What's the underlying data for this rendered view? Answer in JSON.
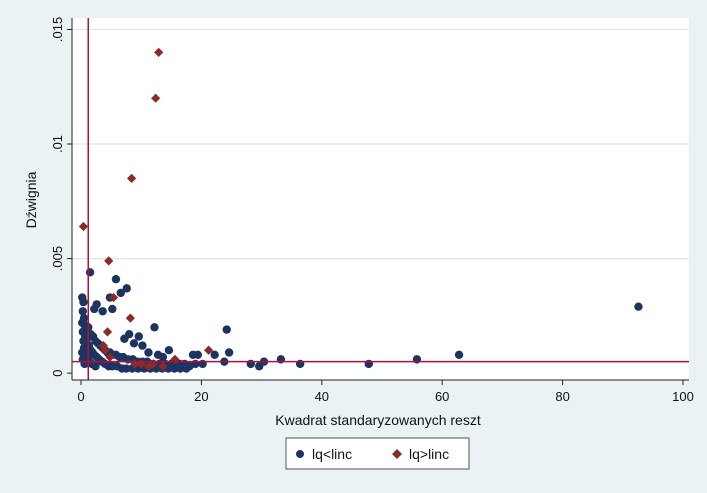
{
  "chart_data": {
    "type": "scatter",
    "title": "",
    "xlabel": "Kwadrat standaryzowanych reszt",
    "ylabel": "Dźwignia",
    "xlim": [
      -1.5,
      101
    ],
    "ylim": [
      -0.0003,
      0.0155
    ],
    "xticks": [
      0,
      20,
      40,
      60,
      80,
      100
    ],
    "xtick_labels": [
      "0",
      "20",
      "40",
      "60",
      "80",
      "100"
    ],
    "yticks": [
      0,
      0.005,
      0.01,
      0.015
    ],
    "ytick_labels": [
      "0",
      ".005",
      ".01",
      ".015"
    ],
    "grid": "horizontal",
    "legend": "bottom-center",
    "ref_lines": {
      "x": 1.2,
      "y": 0.0005,
      "color": "#b0103a"
    },
    "series": [
      {
        "name": "lq<linc",
        "color": "#1d3461",
        "marker": "circle",
        "points": [
          [
            0.2,
            0.0033
          ],
          [
            0.4,
            0.0031
          ],
          [
            0.3,
            0.0027
          ],
          [
            0.5,
            0.0024
          ],
          [
            0.2,
            0.0022
          ],
          [
            0.6,
            0.0021
          ],
          [
            0.8,
            0.0019
          ],
          [
            0.3,
            0.0018
          ],
          [
            0.7,
            0.0016
          ],
          [
            1.0,
            0.0015
          ],
          [
            0.4,
            0.0014
          ],
          [
            0.9,
            0.0013
          ],
          [
            1.3,
            0.0012
          ],
          [
            0.5,
            0.0011
          ],
          [
            1.6,
            0.001
          ],
          [
            0.2,
            0.0009
          ],
          [
            1.9,
            0.0009
          ],
          [
            0.8,
            0.0008
          ],
          [
            2.2,
            0.0008
          ],
          [
            1.1,
            0.0007
          ],
          [
            2.6,
            0.0007
          ],
          [
            0.3,
            0.0006
          ],
          [
            3.0,
            0.0006
          ],
          [
            1.4,
            0.0005
          ],
          [
            3.5,
            0.0005
          ],
          [
            0.6,
            0.0004
          ],
          [
            4.0,
            0.0004
          ],
          [
            1.8,
            0.0004
          ],
          [
            4.6,
            0.0003
          ],
          [
            2.4,
            0.0003
          ],
          [
            5.2,
            0.0003
          ],
          [
            6.0,
            0.0003
          ],
          [
            6.8,
            0.0002
          ],
          [
            7.5,
            0.0002
          ],
          [
            8.5,
            0.0002
          ],
          [
            9.5,
            0.0002
          ],
          [
            10.5,
            0.0002
          ],
          [
            11.5,
            0.0002
          ],
          [
            12.5,
            0.0002
          ],
          [
            13.5,
            0.0002
          ],
          [
            14.5,
            0.0002
          ],
          [
            15.5,
            0.0002
          ],
          [
            16.5,
            0.0002
          ],
          [
            17.5,
            0.0002
          ],
          [
            1.2,
            0.002
          ],
          [
            1.6,
            0.0017
          ],
          [
            2.0,
            0.0016
          ],
          [
            2.4,
            0.0014
          ],
          [
            2.8,
            0.0013
          ],
          [
            3.2,
            0.0012
          ],
          [
            3.6,
            0.0011
          ],
          [
            4.0,
            0.001
          ],
          [
            4.4,
            0.0009
          ],
          [
            4.8,
            0.0009
          ],
          [
            5.2,
            0.0008
          ],
          [
            5.8,
            0.0008
          ],
          [
            6.4,
            0.0007
          ],
          [
            7.0,
            0.0007
          ],
          [
            7.8,
            0.0006
          ],
          [
            8.6,
            0.0006
          ],
          [
            9.4,
            0.0005
          ],
          [
            10.2,
            0.0005
          ],
          [
            11.0,
            0.0005
          ],
          [
            12.0,
            0.0004
          ],
          [
            13.0,
            0.0004
          ],
          [
            14.0,
            0.0004
          ],
          [
            15.0,
            0.0004
          ],
          [
            16.0,
            0.0003
          ],
          [
            17.0,
            0.0003
          ],
          [
            18.0,
            0.0003
          ],
          [
            1.5,
            0.0044
          ],
          [
            2.2,
            0.0028
          ],
          [
            2.6,
            0.003
          ],
          [
            3.6,
            0.0027
          ],
          [
            4.8,
            0.0033
          ],
          [
            5.2,
            0.0028
          ],
          [
            5.8,
            0.0041
          ],
          [
            6.6,
            0.0035
          ],
          [
            7.6,
            0.0037
          ],
          [
            8.0,
            0.0017
          ],
          [
            7.2,
            0.0015
          ],
          [
            8.8,
            0.0013
          ],
          [
            9.6,
            0.0016
          ],
          [
            10.2,
            0.0012
          ],
          [
            12.2,
            0.002
          ],
          [
            11.2,
            0.0009
          ],
          [
            12.8,
            0.0008
          ],
          [
            13.6,
            0.0007
          ],
          [
            14.6,
            0.001
          ],
          [
            15.6,
            0.0005
          ],
          [
            16.4,
            0.0004
          ],
          [
            17.2,
            0.0004
          ],
          [
            18.6,
            0.0008
          ],
          [
            19.4,
            0.0008
          ],
          [
            19.0,
            0.0004
          ],
          [
            20.2,
            0.0004
          ],
          [
            22.2,
            0.0008
          ],
          [
            24.2,
            0.0019
          ],
          [
            24.6,
            0.0009
          ],
          [
            23.8,
            0.0005
          ],
          [
            28.2,
            0.0004
          ],
          [
            29.6,
            0.0003
          ],
          [
            30.4,
            0.0005
          ],
          [
            33.2,
            0.0006
          ],
          [
            36.4,
            0.0004
          ],
          [
            47.8,
            0.0004
          ],
          [
            55.8,
            0.0006
          ],
          [
            62.8,
            0.0008
          ],
          [
            92.6,
            0.0029
          ]
        ]
      },
      {
        "name": "lq>linc",
        "color": "#8b2a2a",
        "marker": "diamond",
        "points": [
          [
            0.4,
            0.0064
          ],
          [
            4.6,
            0.0049
          ],
          [
            8.4,
            0.0085
          ],
          [
            12.4,
            0.012
          ],
          [
            12.9,
            0.014
          ],
          [
            5.4,
            0.0033
          ],
          [
            8.2,
            0.0024
          ],
          [
            4.4,
            0.0018
          ],
          [
            3.7,
            0.0012
          ],
          [
            4.0,
            0.001
          ],
          [
            4.8,
            0.0007
          ],
          [
            9.0,
            0.0004
          ],
          [
            10.0,
            0.0004
          ],
          [
            11.2,
            0.0003
          ],
          [
            12.0,
            0.0004
          ],
          [
            13.6,
            0.0003
          ],
          [
            15.6,
            0.0006
          ],
          [
            21.2,
            0.001
          ]
        ]
      }
    ]
  }
}
